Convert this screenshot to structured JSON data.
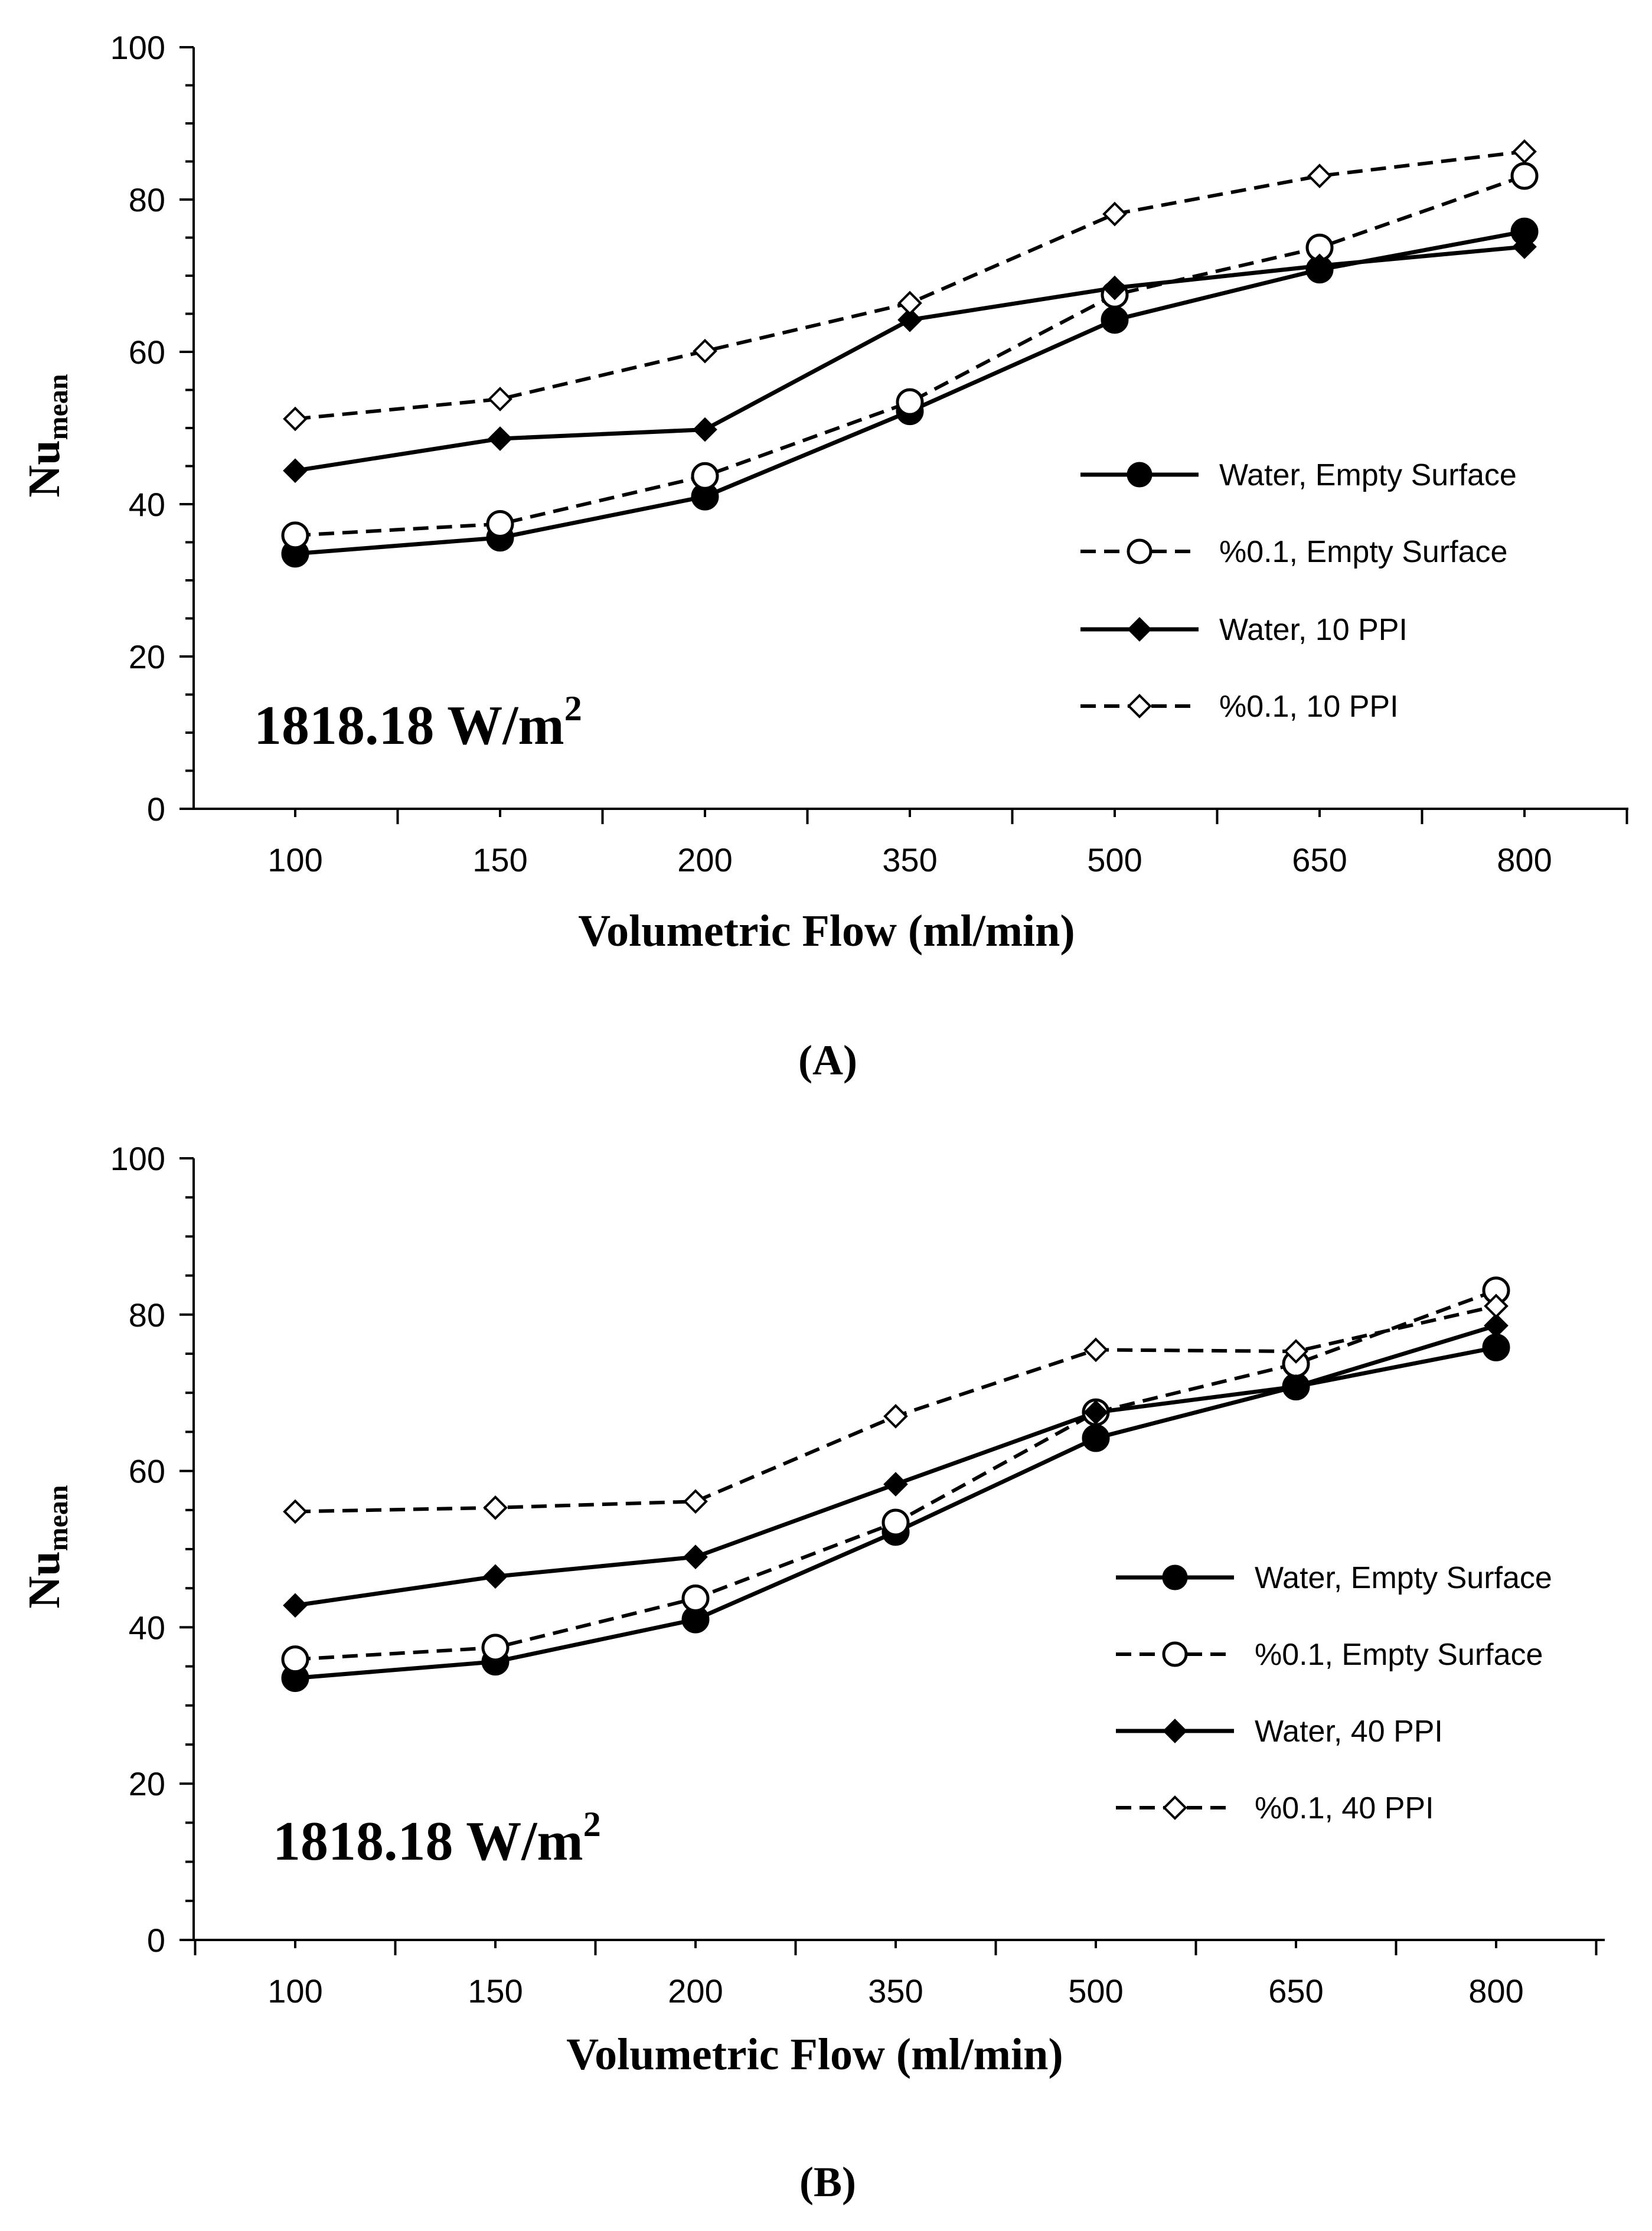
{
  "chart_data": [
    {
      "type": "line",
      "panel_label": "(A)",
      "annotation": {
        "main": "1818.18 W/m",
        "superscript": "2"
      },
      "xlabel": "Volumetric Flow (ml/min)",
      "ylabel": {
        "main": "Nu",
        "subscript": "mean"
      },
      "categories": [
        "100",
        "150",
        "200",
        "350",
        "500",
        "650",
        "800"
      ],
      "ylim": [
        0,
        100
      ],
      "yticks": [
        "0",
        "20",
        "40",
        "60",
        "80",
        "100"
      ],
      "grid": false,
      "legend_position": "right-middle",
      "series": [
        {
          "name": "Water, Empty Surface",
          "values": [
            33.5,
            35.6,
            41.0,
            52.2,
            64.2,
            70.8,
            75.8
          ],
          "line": "solid",
          "marker": "filled-circle"
        },
        {
          "name": "%0.1, Empty Surface",
          "values": [
            35.9,
            37.4,
            43.7,
            53.4,
            67.5,
            73.7,
            83.1
          ],
          "line": "dashed",
          "marker": "open-circle"
        },
        {
          "name": "Water, 10 PPI",
          "values": [
            44.4,
            48.6,
            49.8,
            64.2,
            68.4,
            71.3,
            73.8
          ],
          "line": "solid",
          "marker": "filled-diamond"
        },
        {
          "name": "%0.1, 10 PPI",
          "values": [
            51.2,
            53.8,
            60.1,
            66.4,
            78.1,
            83.1,
            86.3
          ],
          "line": "dashed",
          "marker": "open-diamond"
        }
      ]
    },
    {
      "type": "line",
      "panel_label": "(B)",
      "annotation": {
        "main": "1818.18 W/m",
        "superscript": "2"
      },
      "xlabel": "Volumetric Flow (ml/min)",
      "ylabel": {
        "main": "Nu",
        "subscript": "mean"
      },
      "categories": [
        "100",
        "150",
        "200",
        "350",
        "500",
        "650",
        "800"
      ],
      "ylim": [
        0,
        100
      ],
      "yticks": [
        "0",
        "20",
        "40",
        "60",
        "80",
        "100"
      ],
      "grid": false,
      "legend_position": "right-lower",
      "series": [
        {
          "name": "Water, Empty Surface",
          "values": [
            33.5,
            35.6,
            41.0,
            52.2,
            64.2,
            70.8,
            75.8
          ],
          "line": "solid",
          "marker": "filled-circle"
        },
        {
          "name": "%0.1, Empty Surface",
          "values": [
            35.9,
            37.4,
            43.7,
            53.4,
            67.5,
            73.7,
            83.1
          ],
          "line": "dashed",
          "marker": "open-circle"
        },
        {
          "name": "Water, 40 PPI",
          "values": [
            42.8,
            46.5,
            49.0,
            58.3,
            67.5,
            70.8,
            78.6
          ],
          "line": "solid",
          "marker": "filled-diamond"
        },
        {
          "name": "%0.1, 40 PPI",
          "values": [
            54.8,
            55.3,
            56.1,
            67.0,
            75.5,
            75.3,
            81.1
          ],
          "line": "dashed",
          "marker": "open-diamond"
        }
      ]
    }
  ]
}
